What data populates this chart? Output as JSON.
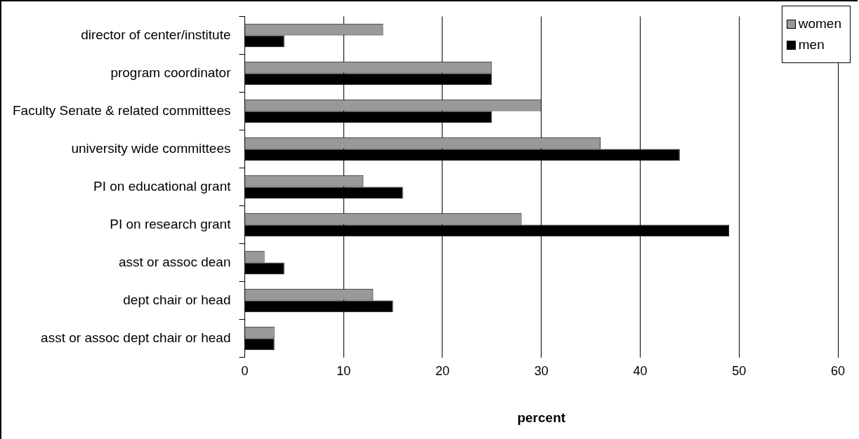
{
  "chart_data": {
    "type": "bar",
    "orientation": "horizontal",
    "xlabel": "percent",
    "categories": [
      "director of center/institute",
      "program coordinator",
      "Faculty Senate & related committees",
      "university wide committees",
      "PI on educational grant",
      "PI on research grant",
      "asst or assoc dean",
      "dept chair or head",
      "asst or assoc dept chair or head"
    ],
    "series": [
      {
        "name": "women",
        "color": "#999999",
        "values": [
          14,
          25,
          30,
          36,
          12,
          28,
          2,
          13,
          3
        ]
      },
      {
        "name": "men",
        "color": "#000000",
        "values": [
          4,
          25,
          25,
          44,
          16,
          49,
          4,
          15,
          3
        ]
      }
    ],
    "xlim": [
      0,
      60
    ],
    "xticks": [
      0,
      10,
      20,
      30,
      40,
      50,
      60
    ],
    "grid": "x",
    "legend": "top right"
  }
}
